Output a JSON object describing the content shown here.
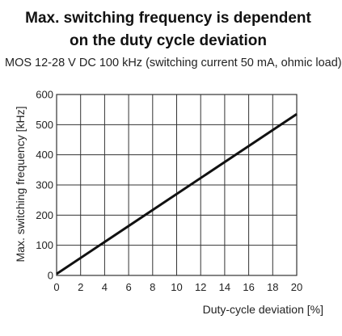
{
  "chart_data": {
    "type": "line",
    "title_line1": "Max. switching frequency is dependent",
    "title_line2": "on the duty cycle deviation",
    "subtitle": "MOS 12-28 V DC 100 kHz (switching current 50 mA, ohmic load)",
    "xlabel": "Duty-cycle deviation [%]",
    "ylabel": "Max. switching frequency [kHz]",
    "xlim": [
      0,
      20
    ],
    "ylim": [
      0,
      600
    ],
    "xticks": [
      0,
      2,
      4,
      6,
      8,
      10,
      12,
      14,
      16,
      18,
      20
    ],
    "yticks": [
      0,
      100,
      200,
      300,
      400,
      500,
      600
    ],
    "grid": true,
    "series": [
      {
        "x": [
          0,
          20
        ],
        "y": [
          5,
          535
        ]
      }
    ],
    "colors": {
      "line": "#111111",
      "grid": "#333333"
    }
  }
}
